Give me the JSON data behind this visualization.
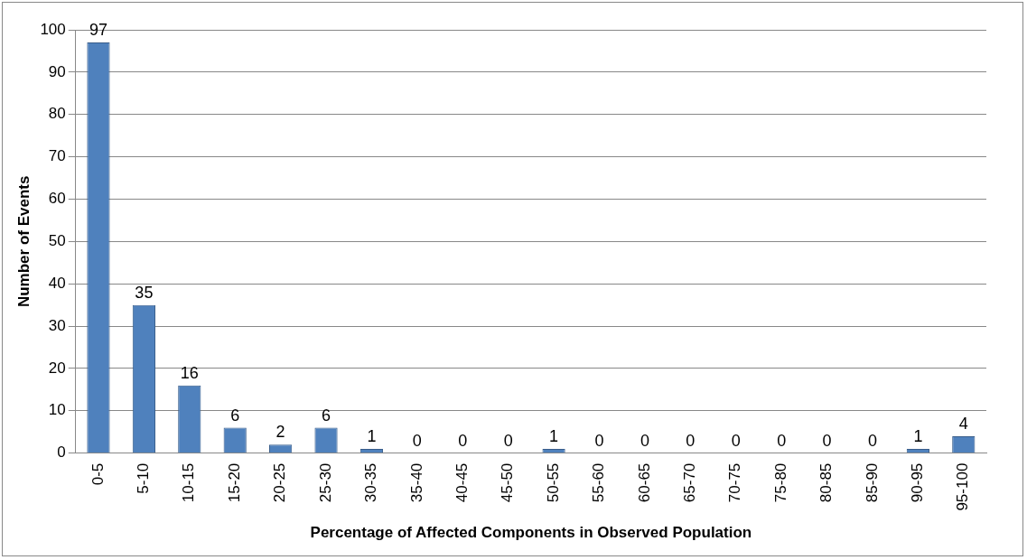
{
  "chart_data": {
    "type": "bar",
    "xlabel": "Percentage of Affected Components in Observed Population",
    "ylabel": "Number of Events",
    "categories": [
      "0-5",
      "5-10",
      "10-15",
      "15-20",
      "20-25",
      "25-30",
      "30-35",
      "35-40",
      "40-45",
      "45-50",
      "50-55",
      "55-60",
      "60-65",
      "65-70",
      "70-75",
      "75-80",
      "80-85",
      "85-90",
      "90-95",
      "95-100"
    ],
    "values": [
      97,
      35,
      16,
      6,
      2,
      6,
      1,
      0,
      0,
      0,
      1,
      0,
      0,
      0,
      0,
      0,
      0,
      0,
      1,
      4
    ],
    "color": "#4f81bd",
    "ylim": [
      0,
      100
    ],
    "yticks": [
      0,
      10,
      20,
      30,
      40,
      50,
      60,
      70,
      80,
      90,
      100
    ],
    "grid": "y",
    "data_labels": true,
    "legend": false
  }
}
